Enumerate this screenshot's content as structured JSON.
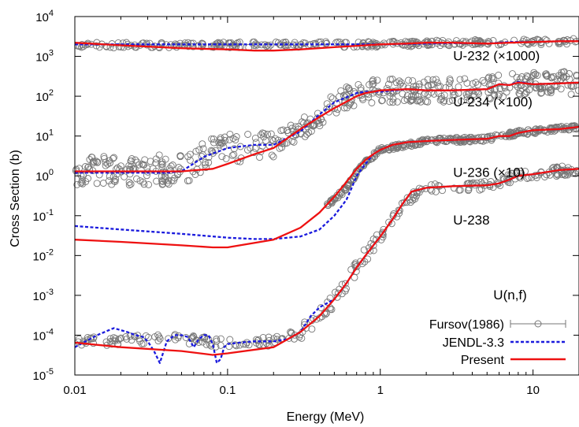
{
  "chart_data": {
    "type": "scatter",
    "title": "",
    "xlabel": "Energy (MeV)",
    "ylabel": "Cross Section (b)",
    "xscale": "log",
    "yscale": "log",
    "xlim": [
      0.01,
      20
    ],
    "ylim": [
      1e-05,
      10000
    ],
    "x_ticks": [
      {
        "value": 0.01,
        "label": "0.01"
      },
      {
        "value": 0.1,
        "label": "0.1"
      },
      {
        "value": 1,
        "label": "1"
      },
      {
        "value": 10,
        "label": "10"
      }
    ],
    "y_ticks": [
      {
        "value": 1e-05,
        "base": "10",
        "exp": "-5"
      },
      {
        "value": 0.0001,
        "base": "10",
        "exp": "-4"
      },
      {
        "value": 0.001,
        "base": "10",
        "exp": "-3"
      },
      {
        "value": 0.01,
        "base": "10",
        "exp": "-2"
      },
      {
        "value": 0.1,
        "base": "10",
        "exp": "-1"
      },
      {
        "value": 1,
        "base": "10",
        "exp": "0"
      },
      {
        "value": 10,
        "base": "10",
        "exp": "1"
      },
      {
        "value": 100,
        "base": "10",
        "exp": "2"
      },
      {
        "value": 1000,
        "base": "10",
        "exp": "3"
      },
      {
        "value": 10000,
        "base": "10",
        "exp": "4"
      }
    ],
    "annotations": [
      {
        "text": "U-232 (×1000)",
        "x": 3.0,
        "y": 800
      },
      {
        "text": "U-234 (×100)",
        "x": 3.0,
        "y": 55
      },
      {
        "text": "U-236 (×10)",
        "x": 3.0,
        "y": 0.95
      },
      {
        "text": "U-238",
        "x": 3.0,
        "y": 0.06
      },
      {
        "text": "U(n,f)",
        "x": 5.5,
        "y": 0.0008
      }
    ],
    "legend": {
      "position": "bottom-right",
      "entries": [
        {
          "label": "Fursov(1986)",
          "style": "markers-errorbars"
        },
        {
          "label": "JENDL-3.3",
          "style": "dashed"
        },
        {
          "label": "Present",
          "style": "solid"
        }
      ]
    },
    "series": [
      {
        "label": "Present",
        "color": "#ee1111",
        "style": "solid",
        "curves": [
          {
            "isotope": "U-232",
            "x": [
              0.01,
              0.02,
              0.05,
              0.1,
              0.15,
              0.2,
              0.3,
              0.5,
              0.8,
              1,
              1.5,
              2,
              3,
              5,
              7,
              10,
              15,
              20
            ],
            "y": [
              2200,
              1900,
              1600,
              1500,
              1400,
              1400,
              1500,
              1700,
              1900,
              2000,
              2100,
              2200,
              2200,
              2100,
              2200,
              2300,
              2400,
              2400
            ]
          },
          {
            "isotope": "U-234",
            "x": [
              0.01,
              0.02,
              0.05,
              0.08,
              0.1,
              0.15,
              0.2,
              0.3,
              0.4,
              0.5,
              0.7,
              0.8,
              1,
              1.5,
              2,
              3,
              5,
              6,
              7,
              8,
              10,
              15,
              20
            ],
            "y": [
              1.3,
              1.3,
              1.3,
              1.5,
              2.0,
              3.5,
              5.0,
              15,
              30,
              50,
              100,
              120,
              140,
              150,
              140,
              140,
              150,
              200,
              190,
              220,
              200,
              210,
              220
            ]
          },
          {
            "isotope": "U-236",
            "x": [
              0.01,
              0.02,
              0.05,
              0.08,
              0.1,
              0.2,
              0.3,
              0.4,
              0.5,
              0.6,
              0.7,
              0.8,
              0.9,
              1,
              1.2,
              1.5,
              2,
              3,
              5,
              6,
              7,
              8,
              10,
              15,
              20
            ],
            "y": [
              0.025,
              0.022,
              0.018,
              0.016,
              0.016,
              0.025,
              0.05,
              0.12,
              0.3,
              0.7,
              1.5,
              2.5,
              3.5,
              4.5,
              6,
              7,
              7.5,
              8,
              8.5,
              10,
              10,
              12,
              14,
              15,
              17
            ]
          },
          {
            "isotope": "U-238",
            "x": [
              0.01,
              0.02,
              0.05,
              0.08,
              0.1,
              0.2,
              0.3,
              0.4,
              0.5,
              0.6,
              0.7,
              0.8,
              0.9,
              1,
              1.2,
              1.4,
              1.6,
              2,
              3,
              5,
              6,
              7,
              8,
              10,
              15,
              20
            ],
            "y": [
              6.5e-05,
              5e-05,
              4e-05,
              3.2e-05,
              3.5e-05,
              5e-05,
              0.00012,
              0.0003,
              0.0008,
              0.002,
              0.005,
              0.01,
              0.018,
              0.03,
              0.08,
              0.2,
              0.4,
              0.5,
              0.55,
              0.58,
              0.65,
              0.8,
              1.0,
              1.1,
              1.4,
              1.5
            ]
          }
        ]
      },
      {
        "label": "JENDL-3.3",
        "color": "#1a1add",
        "style": "dashed",
        "curves": [
          {
            "isotope": "U-232",
            "x": [
              0.01,
              0.02,
              0.05,
              0.1,
              0.3,
              0.5,
              0.8,
              1,
              1.5,
              2,
              3,
              5,
              7,
              10,
              15,
              20
            ],
            "y": [
              2000,
              2000,
              2000,
              2000,
              2000,
              2000,
              2000,
              2000,
              2050,
              2100,
              2150,
              2100,
              2300,
              2300,
              2400,
              2400
            ]
          },
          {
            "isotope": "U-234",
            "x": [
              0.01,
              0.02,
              0.04,
              0.05,
              0.07,
              0.1,
              0.15,
              0.2,
              0.3,
              0.4,
              0.5,
              0.7,
              0.8,
              1,
              1.5,
              2,
              3,
              5,
              6,
              7,
              8,
              10,
              15,
              20
            ],
            "y": [
              1.2,
              1.2,
              1.2,
              1.3,
              3,
              5,
              6,
              6,
              13,
              35,
              70,
              120,
              130,
              130,
              150,
              140,
              140,
              150,
              200,
              190,
              230,
              200,
              210,
              220
            ]
          },
          {
            "isotope": "U-236",
            "x": [
              0.01,
              0.02,
              0.05,
              0.1,
              0.15,
              0.2,
              0.3,
              0.4,
              0.5,
              0.6,
              0.65,
              0.7,
              0.8,
              0.9,
              1,
              1.2,
              1.5,
              2,
              3,
              5,
              6,
              7,
              8,
              10,
              15,
              20
            ],
            "y": [
              0.055,
              0.045,
              0.035,
              0.028,
              0.026,
              0.026,
              0.03,
              0.045,
              0.1,
              0.25,
              0.5,
              1.0,
              2.0,
              3.5,
              4.5,
              6,
              7,
              7.5,
              8,
              8.5,
              10,
              10,
              12,
              14,
              15,
              17
            ]
          },
          {
            "isotope": "U-238",
            "x": [
              0.01,
              0.014,
              0.018,
              0.022,
              0.025,
              0.028,
              0.03,
              0.033,
              0.036,
              0.04,
              0.045,
              0.05,
              0.055,
              0.06,
              0.065,
              0.07,
              0.075,
              0.08,
              0.085,
              0.09,
              0.095,
              0.1,
              0.12,
              0.15,
              0.2,
              0.25,
              0.3,
              0.35,
              0.4,
              0.5,
              0.6,
              0.7,
              0.8,
              0.9,
              1,
              1.2,
              1.4,
              1.6,
              2,
              3,
              5,
              6,
              7,
              8,
              10,
              15,
              20
            ],
            "y": [
              5e-05,
              0.0001,
              0.00015,
              0.00012,
              0.0001,
              9e-05,
              7e-05,
              4e-05,
              2e-05,
              7e-05,
              0.0001,
              0.0001,
              9e-05,
              5e-05,
              8e-05,
              0.0001,
              0.0001,
              6e-05,
              2e-05,
              2.5e-05,
              5e-05,
              6e-05,
              6.5e-05,
              7e-05,
              7e-05,
              8e-05,
              0.00012,
              0.0003,
              0.0005,
              0.0008,
              0.002,
              0.005,
              0.01,
              0.018,
              0.03,
              0.08,
              0.2,
              0.4,
              0.5,
              0.55,
              0.58,
              0.65,
              0.8,
              1.0,
              1.1,
              1.4,
              1.5
            ]
          }
        ]
      },
      {
        "label": "Fursov(1986)",
        "color": "#777777",
        "style": "open-circles",
        "bands": [
          {
            "isotope": "U-232",
            "x_range": [
              0.01,
              20
            ],
            "y_center": [
              [
                0.01,
                1900
              ],
              [
                0.02,
                1900
              ],
              [
                0.1,
                1950
              ],
              [
                0.5,
                2000
              ],
              [
                1,
                2000
              ],
              [
                3,
                2200
              ],
              [
                10,
                2300
              ],
              [
                20,
                2400
              ]
            ],
            "scatter_decades": 0.07
          },
          {
            "isotope": "U-234",
            "x_range": [
              0.01,
              20
            ],
            "y_center": [
              [
                0.01,
                1.4
              ],
              [
                0.05,
                1.4
              ],
              [
                0.07,
                3
              ],
              [
                0.1,
                5
              ],
              [
                0.2,
                6
              ],
              [
                0.3,
                15
              ],
              [
                0.5,
                70
              ],
              [
                0.8,
                130
              ],
              [
                1,
                140
              ],
              [
                2,
                140
              ],
              [
                5,
                150
              ],
              [
                8,
                220
              ],
              [
                20,
                220
              ]
            ],
            "scatter_decades": 0.3
          },
          {
            "isotope": "U-236",
            "x_range": [
              0.45,
              20
            ],
            "y_center": [
              [
                0.45,
                0.2
              ],
              [
                0.5,
                0.25
              ],
              [
                0.6,
                0.5
              ],
              [
                0.7,
                1.2
              ],
              [
                0.8,
                2.2
              ],
              [
                1,
                4.5
              ],
              [
                2,
                7.5
              ],
              [
                5,
                8.5
              ],
              [
                8,
                12
              ],
              [
                20,
                17
              ]
            ],
            "scatter_decades": 0.06
          },
          {
            "isotope": "U-238",
            "x_range": [
              0.01,
              20
            ],
            "y_center": [
              [
                0.01,
                7e-05
              ],
              [
                0.05,
                8e-05
              ],
              [
                0.1,
                6e-05
              ],
              [
                0.2,
                7e-05
              ],
              [
                0.3,
                0.00011
              ],
              [
                0.4,
                0.0003
              ],
              [
                0.5,
                0.0007
              ],
              [
                0.6,
                0.002
              ],
              [
                0.7,
                0.005
              ],
              [
                0.8,
                0.01
              ],
              [
                1,
                0.03
              ],
              [
                1.4,
                0.2
              ],
              [
                2,
                0.5
              ],
              [
                5,
                0.58
              ],
              [
                8,
                1.0
              ],
              [
                20,
                1.5
              ]
            ],
            "scatter_decades": 0.12
          }
        ]
      }
    ]
  }
}
